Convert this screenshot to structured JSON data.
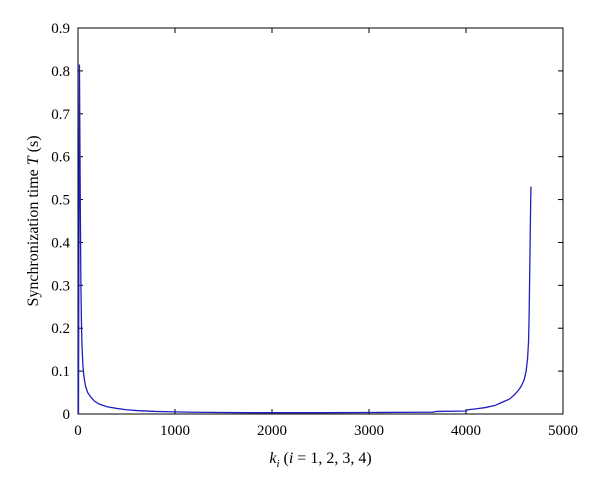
{
  "chart_data": {
    "type": "line",
    "title": "",
    "xlabel": {
      "var": "k",
      "sub": "i",
      "rest_open": " (",
      "rest_var": "i",
      "rest_close": " = 1, 2, 3, 4)"
    },
    "ylabel": {
      "text": "Synchronization time ",
      "var": "T",
      "unit": " (s)"
    },
    "xlim": [
      0,
      5000
    ],
    "ylim": [
      0,
      0.9
    ],
    "xticks": [
      0,
      1000,
      2000,
      3000,
      4000,
      5000
    ],
    "yticks": [
      0,
      0.1,
      0.2,
      0.3,
      0.4,
      0.5,
      0.6,
      0.7,
      0.8,
      0.9
    ],
    "xtick_labels": [
      "0",
      "1000",
      "2000",
      "3000",
      "4000",
      "5000"
    ],
    "ytick_labels": [
      "0",
      "0.1",
      "0.2",
      "0.3",
      "0.4",
      "0.5",
      "0.6",
      "0.7",
      "0.8",
      "0.9"
    ],
    "grid": false,
    "line_color": "#1f1fbf",
    "series": [
      {
        "x": [
          5,
          10,
          15,
          20,
          25,
          30,
          35,
          40,
          45,
          50,
          60,
          70,
          80,
          100,
          130,
          170,
          220,
          300,
          400,
          500,
          600,
          800,
          1000,
          1200,
          1500,
          1800,
          2000,
          2500,
          3000,
          3500,
          3650,
          3700,
          4000,
          4020,
          4100,
          4200,
          4300,
          4350,
          4400,
          4450,
          4500,
          4540,
          4570,
          4600,
          4620,
          4635,
          4645,
          4650,
          4655,
          4660,
          4664,
          4667,
          4670
        ],
        "y": [
          0.0,
          0.45,
          0.815,
          0.62,
          0.45,
          0.3,
          0.22,
          0.17,
          0.14,
          0.115,
          0.09,
          0.075,
          0.063,
          0.05,
          0.04,
          0.03,
          0.023,
          0.017,
          0.013,
          0.01,
          0.008,
          0.006,
          0.005,
          0.004,
          0.0035,
          0.003,
          0.003,
          0.003,
          0.0035,
          0.004,
          0.004,
          0.006,
          0.007,
          0.01,
          0.012,
          0.015,
          0.02,
          0.025,
          0.03,
          0.035,
          0.045,
          0.055,
          0.065,
          0.08,
          0.1,
          0.13,
          0.17,
          0.22,
          0.3,
          0.38,
          0.45,
          0.5,
          0.53
        ]
      }
    ]
  }
}
